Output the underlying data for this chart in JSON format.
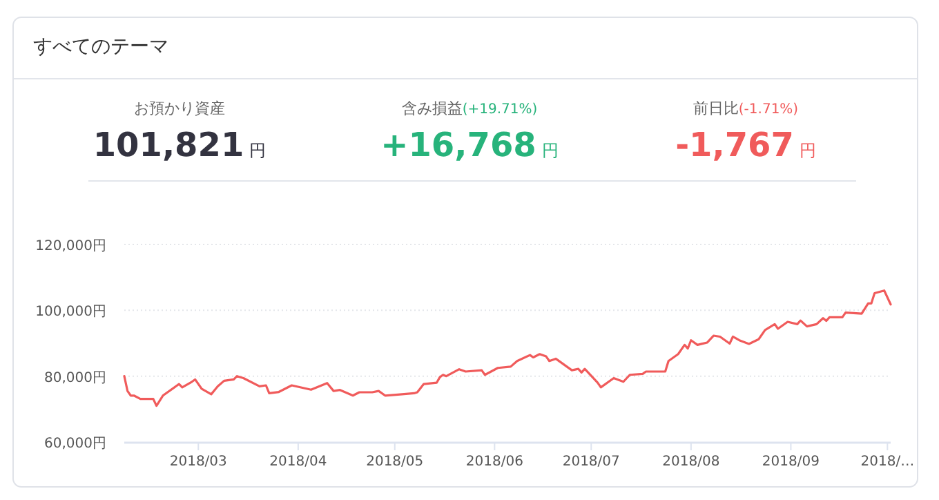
{
  "chart_data": [
    {
      "type": "other",
      "title": "すべてのテーマ",
      "annotations": [
        "お預かり資産",
        "101,821",
        "円",
        "含み損益",
        "(+19.71%)",
        "+16,768",
        "円",
        "前日比",
        "(-1.71%)",
        "-1,767",
        "円"
      ]
    },
    {
      "type": "line",
      "color": "#f05b5b",
      "marker": "none",
      "line_style": "solid",
      "grid": "y",
      "x": [
        "2018-02-06",
        "2018-02-07",
        "2018-02-08",
        "2018-02-09",
        "2018-02-11",
        "2018-02-15",
        "2018-02-16",
        "2018-02-18",
        "2018-02-23",
        "2018-02-24",
        "2018-02-27",
        "2018-02-28",
        "2018-03-02",
        "2018-03-05",
        "2018-03-07",
        "2018-03-09",
        "2018-03-12",
        "2018-03-13",
        "2018-03-15",
        "2018-03-20",
        "2018-03-22",
        "2018-03-23",
        "2018-03-26",
        "2018-03-28",
        "2018-03-30",
        "2018-04-05",
        "2018-04-10",
        "2018-04-12",
        "2018-04-14",
        "2018-04-18",
        "2018-04-20",
        "2018-04-24",
        "2018-04-26",
        "2018-04-28",
        "2018-05-02",
        "2018-05-07",
        "2018-05-08",
        "2018-05-10",
        "2018-05-14",
        "2018-05-15",
        "2018-05-16",
        "2018-05-17",
        "2018-05-21",
        "2018-05-23",
        "2018-05-28",
        "2018-05-29",
        "2018-06-02",
        "2018-06-06",
        "2018-06-08",
        "2018-06-12",
        "2018-06-13",
        "2018-06-15",
        "2018-06-17",
        "2018-06-18",
        "2018-06-20",
        "2018-06-25",
        "2018-06-27",
        "2018-06-28",
        "2018-06-29",
        "2018-07-03",
        "2018-07-04",
        "2018-07-08",
        "2018-07-11",
        "2018-07-13",
        "2018-07-17",
        "2018-07-18",
        "2018-07-24",
        "2018-07-25",
        "2018-07-28",
        "2018-07-30",
        "2018-07-31",
        "2018-08-01",
        "2018-08-03",
        "2018-08-06",
        "2018-08-08",
        "2018-08-10",
        "2018-08-13",
        "2018-08-14",
        "2018-08-16",
        "2018-08-19",
        "2018-08-22",
        "2018-08-24",
        "2018-08-27",
        "2018-08-28",
        "2018-08-31",
        "2018-09-03",
        "2018-09-04",
        "2018-09-06",
        "2018-09-09",
        "2018-09-11",
        "2018-09-12",
        "2018-09-13",
        "2018-09-17",
        "2018-09-18",
        "2018-09-23",
        "2018-09-25",
        "2018-09-26",
        "2018-09-27",
        "2018-09-30",
        "2018-10-02"
      ],
      "values": [
        80000,
        75500,
        74100,
        74100,
        73100,
        73100,
        71000,
        74100,
        77600,
        76600,
        78300,
        79000,
        76200,
        74500,
        76900,
        78600,
        79000,
        80000,
        79400,
        76900,
        77200,
        74800,
        75200,
        76200,
        77200,
        75900,
        77900,
        75500,
        75800,
        74100,
        75100,
        75100,
        75500,
        74100,
        74400,
        74800,
        75100,
        77600,
        78000,
        79700,
        80400,
        80000,
        82100,
        81400,
        81800,
        80400,
        82500,
        82900,
        84600,
        86400,
        85700,
        86700,
        86000,
        84600,
        85300,
        81800,
        82200,
        81100,
        82200,
        78000,
        76600,
        79400,
        78300,
        80400,
        80700,
        81400,
        81400,
        84600,
        86700,
        89500,
        88400,
        90900,
        89500,
        90200,
        92300,
        92000,
        89900,
        92000,
        90900,
        89800,
        91200,
        94000,
        95800,
        94400,
        96500,
        95800,
        96900,
        95100,
        95800,
        97600,
        96800,
        97900,
        97900,
        99300,
        99000,
        102100,
        102100,
        105200,
        106000,
        101800
      ],
      "xlim": [
        "2018-02-06",
        "2018-10-02"
      ],
      "xticks": [
        {
          "value": "2018-03-01",
          "label": "2018/03"
        },
        {
          "value": "2018-04-01",
          "label": "2018/04"
        },
        {
          "value": "2018-05-01",
          "label": "2018/05"
        },
        {
          "value": "2018-06-01",
          "label": "2018/06"
        },
        {
          "value": "2018-07-01",
          "label": "2018/07"
        },
        {
          "value": "2018-08-01",
          "label": "2018/08"
        },
        {
          "value": "2018-09-01",
          "label": "2018/09"
        },
        {
          "value": "2018-10-01",
          "label": "2018/…"
        }
      ],
      "ylim": [
        60000,
        120000
      ],
      "yticks": [
        {
          "value": 60000,
          "label": "60,000円"
        },
        {
          "value": 80000,
          "label": "80,000円"
        },
        {
          "value": 100000,
          "label": "100,000円"
        },
        {
          "value": 120000,
          "label": "120,000円"
        }
      ]
    }
  ]
}
